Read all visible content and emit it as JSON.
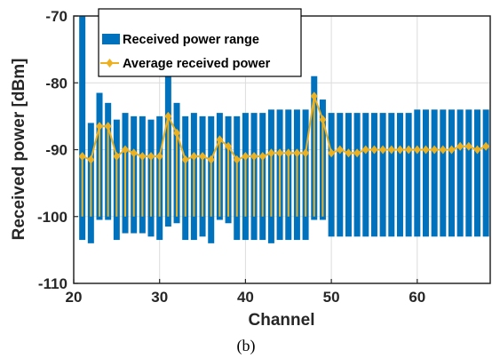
{
  "chart_data": {
    "type": "bar",
    "xlabel": "Channel",
    "ylabel": "Received power [dBm]",
    "xlim": [
      20,
      68.5
    ],
    "ylim": [
      -110,
      -70
    ],
    "xticks": [
      20,
      30,
      40,
      50,
      60
    ],
    "yticks": [
      -110,
      -100,
      -90,
      -80,
      -70
    ],
    "grid": true,
    "legend_position": "top-left",
    "series": [
      {
        "name": "Received power range",
        "kind": "range-bar",
        "color": "#0072BD",
        "x": [
          21,
          22,
          23,
          24,
          25,
          26,
          27,
          28,
          29,
          30,
          31,
          32,
          33,
          34,
          35,
          36,
          37,
          38,
          39,
          40,
          41,
          42,
          43,
          44,
          45,
          46,
          47,
          48,
          49,
          50,
          51,
          52,
          53,
          54,
          55,
          56,
          57,
          58,
          59,
          60,
          61,
          62,
          63,
          64,
          65,
          66,
          67,
          68
        ],
        "high": [
          -70,
          -86,
          -81.5,
          -83,
          -85.5,
          -84.5,
          -85,
          -85,
          -85.5,
          -85,
          -79,
          -83,
          -85,
          -84.5,
          -85,
          -85,
          -84.5,
          -85,
          -85,
          -84.5,
          -84.5,
          -84.5,
          -84,
          -84,
          -84,
          -84,
          -84,
          -79,
          -82.5,
          -84.5,
          -84.5,
          -84.5,
          -84.5,
          -84.5,
          -84.5,
          -84.5,
          -84.5,
          -84.5,
          -84.5,
          -84,
          -84,
          -84,
          -84,
          -84,
          -84,
          -84,
          -84,
          -84
        ],
        "low": [
          -103.5,
          -104,
          -100.5,
          -100.5,
          -103.5,
          -102.5,
          -102.5,
          -102.5,
          -103,
          -103.5,
          -101.5,
          -101,
          -103.5,
          -103.5,
          -103,
          -104,
          -100.5,
          -101,
          -103.5,
          -103.5,
          -103.5,
          -103.5,
          -104,
          -103.5,
          -103.5,
          -103.5,
          -103.5,
          -100.5,
          -100.5,
          -103,
          -103,
          -103,
          -103,
          -103,
          -103,
          -103,
          -103,
          -103,
          -103,
          -103,
          -103,
          -103,
          -103,
          -103,
          -103,
          -103,
          -103,
          -103
        ]
      },
      {
        "name": "Average received power",
        "kind": "line-marker",
        "color": "#EDB120",
        "x": [
          21,
          22,
          23,
          24,
          25,
          26,
          27,
          28,
          29,
          30,
          31,
          32,
          33,
          34,
          35,
          36,
          37,
          38,
          39,
          40,
          41,
          42,
          43,
          44,
          45,
          46,
          47,
          48,
          49,
          50,
          51,
          52,
          53,
          54,
          55,
          56,
          57,
          58,
          59,
          60,
          61,
          62,
          63,
          64,
          65,
          66,
          67,
          68
        ],
        "values": [
          -91,
          -91.5,
          -86.5,
          -86.5,
          -91,
          -90,
          -90.5,
          -91,
          -91,
          -91,
          -85,
          -87.5,
          -91.5,
          -91,
          -91,
          -91.5,
          -88.5,
          -89.5,
          -91.5,
          -91,
          -91,
          -91,
          -90.5,
          -90.5,
          -90.5,
          -90.5,
          -90.5,
          -82,
          -85.5,
          -90.5,
          -90,
          -90.5,
          -90.5,
          -90,
          -90,
          -90,
          -90,
          -90,
          -90,
          -90,
          -90,
          -90,
          -90,
          -90,
          -89.5,
          -89.5,
          -90,
          -89.5
        ],
        "stems": [
          21,
          22,
          23,
          24,
          25,
          26,
          27,
          28,
          29,
          30,
          31,
          32,
          33,
          34,
          35,
          36,
          37,
          38,
          39,
          40,
          41,
          42,
          43,
          44,
          45,
          46,
          47,
          48,
          49
        ],
        "stem_base": -100
      }
    ]
  },
  "caption": "(b)"
}
